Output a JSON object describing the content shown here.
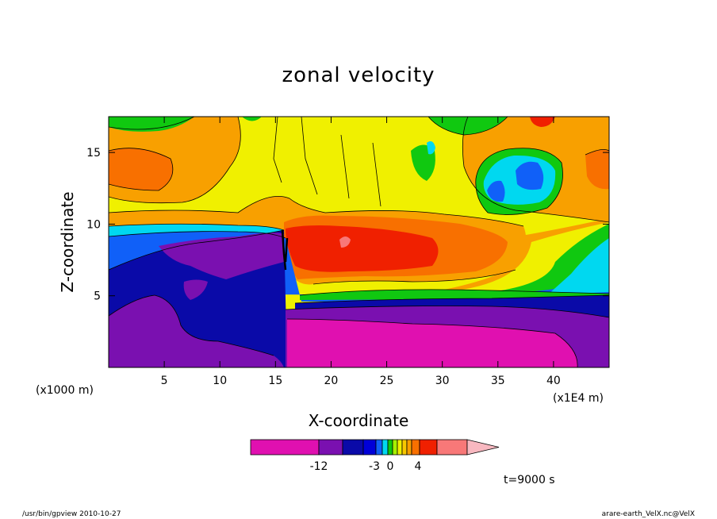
{
  "chart_data": {
    "type": "heatmap",
    "title": "zonal velocity",
    "xlabel": "X-coordinate",
    "ylabel": "Z-coordinate",
    "x_unit_label": "(x1000 m)",
    "x_scale_label": "(x1E4 m)",
    "xlim": [
      0,
      45
    ],
    "ylim": [
      0,
      17.5
    ],
    "x_ticks": [
      5,
      10,
      15,
      20,
      25,
      30,
      35,
      40
    ],
    "y_ticks": [
      5,
      10,
      15
    ],
    "x_tick_labels": [
      "5",
      "10",
      "15",
      "20",
      "25",
      "30",
      "35",
      "40"
    ],
    "y_tick_labels": [
      "5",
      "10",
      "15"
    ],
    "colorbar": {
      "colors": [
        "#e010b0",
        "#7a10b0",
        "#0a0aa8",
        "#0000d8",
        "#1060f8",
        "#00d8f0",
        "#10c810",
        "#a8f000",
        "#f0f000",
        "#f8c800",
        "#f8a000",
        "#f87000",
        "#f02000",
        "#f87878",
        "#f8b8c0"
      ],
      "tick_labels": [
        "-12",
        "-3",
        "0",
        "4"
      ]
    },
    "time_label": "t=9000 s"
  },
  "footer": {
    "left": "/usr/bin/gpview   2010-10-27",
    "right": "arare-earth_VelX.nc@VelX"
  }
}
